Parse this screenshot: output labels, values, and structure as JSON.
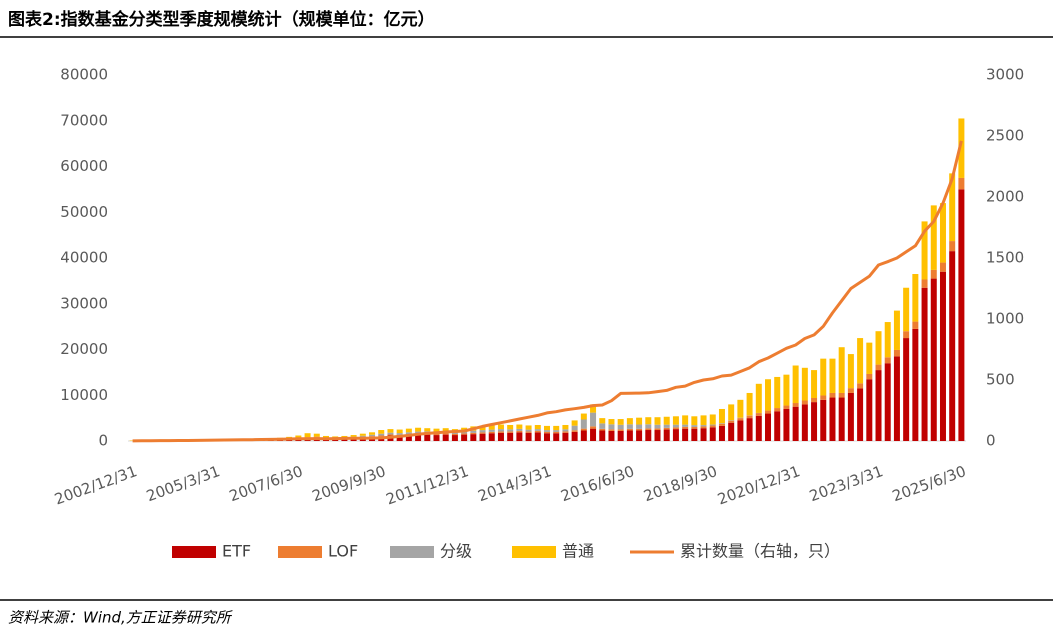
{
  "chart_data": {
    "type": "bar",
    "stacked": true,
    "title": "图表2:指数基金分类型季度规模统计（规模单位：亿元）",
    "source": "资料来源：Wind,方正证券研究所",
    "categories": [
      "2002/12/31",
      null,
      null,
      null,
      null,
      null,
      null,
      null,
      null,
      "2005/3/31",
      null,
      null,
      null,
      null,
      null,
      null,
      null,
      null,
      "2007/6/30",
      null,
      null,
      null,
      null,
      null,
      null,
      null,
      null,
      "2009/9/30",
      null,
      null,
      null,
      null,
      null,
      null,
      null,
      null,
      "2011/12/31",
      null,
      null,
      null,
      null,
      null,
      null,
      null,
      null,
      "2014/3/31",
      null,
      null,
      null,
      null,
      null,
      null,
      null,
      null,
      "2016/6/30",
      null,
      null,
      null,
      null,
      null,
      null,
      null,
      null,
      "2018/9/30",
      null,
      null,
      null,
      null,
      null,
      null,
      null,
      null,
      "2020/12/31",
      null,
      null,
      null,
      null,
      null,
      null,
      null,
      null,
      "2023/3/31",
      null,
      null,
      null,
      null,
      null,
      null,
      null,
      null,
      "2025/6/30"
    ],
    "series": [
      {
        "name": "ETF",
        "color": "#C00000",
        "values": [
          0,
          0,
          0,
          0,
          0,
          0,
          0,
          0,
          50,
          60,
          80,
          100,
          110,
          120,
          150,
          200,
          300,
          400,
          500,
          700,
          800,
          500,
          500,
          600,
          700,
          800,
          900,
          1000,
          1200,
          1100,
          1200,
          1300,
          1400,
          1300,
          1400,
          1300,
          1400,
          1500,
          1600,
          1700,
          1800,
          1800,
          1900,
          1800,
          1900,
          1700,
          1700,
          1800,
          2000,
          2300,
          2700,
          2300,
          2200,
          2200,
          2300,
          2300,
          2400,
          2400,
          2500,
          2600,
          2700,
          2700,
          2800,
          3000,
          3300,
          4000,
          4500,
          5000,
          5500,
          6000,
          6500,
          7000,
          7500,
          8000,
          8500,
          9000,
          9500,
          9500,
          10500,
          11500,
          13500,
          15500,
          17000,
          18500,
          22500,
          24500,
          33500,
          35500,
          37000,
          41500,
          55000
        ]
      },
      {
        "name": "LOF",
        "color": "#ED7D31",
        "values": [
          0,
          0,
          0,
          0,
          0,
          0,
          0,
          0,
          0,
          0,
          0,
          0,
          0,
          20,
          30,
          40,
          50,
          80,
          100,
          150,
          150,
          100,
          100,
          100,
          120,
          150,
          170,
          200,
          220,
          230,
          250,
          260,
          250,
          240,
          250,
          230,
          250,
          270,
          280,
          290,
          300,
          300,
          300,
          290,
          300,
          280,
          280,
          300,
          350,
          400,
          500,
          350,
          350,
          350,
          350,
          350,
          360,
          360,
          370,
          370,
          380,
          370,
          380,
          390,
          420,
          450,
          500,
          550,
          600,
          650,
          700,
          750,
          800,
          850,
          900,
          950,
          1000,
          1000,
          1050,
          1100,
          1150,
          1200,
          1300,
          1400,
          1500,
          1600,
          1800,
          1900,
          2000,
          2200,
          2500
        ]
      },
      {
        "name": "分级",
        "color": "#A5A5A5",
        "values": [
          0,
          0,
          0,
          0,
          0,
          0,
          0,
          0,
          0,
          0,
          0,
          0,
          0,
          0,
          0,
          0,
          0,
          0,
          0,
          0,
          0,
          0,
          0,
          50,
          100,
          200,
          300,
          400,
          400,
          400,
          450,
          500,
          450,
          450,
          450,
          400,
          450,
          500,
          500,
          500,
          500,
          450,
          450,
          400,
          400,
          400,
          400,
          450,
          1000,
          2000,
          3000,
          1200,
          1100,
          1000,
          1000,
          950,
          900,
          800,
          700,
          600,
          500,
          400,
          300,
          200,
          150,
          100,
          80,
          50,
          30,
          0,
          0,
          0,
          0,
          0,
          0,
          0,
          0,
          0,
          0,
          0,
          0,
          0,
          0,
          0,
          0,
          0,
          0,
          0,
          0,
          0,
          0
        ]
      },
      {
        "name": "普通",
        "color": "#FFC000",
        "values": [
          100,
          110,
          120,
          130,
          150,
          160,
          180,
          200,
          200,
          240,
          270,
          300,
          340,
          360,
          370,
          360,
          350,
          420,
          600,
          850,
          650,
          500,
          400,
          350,
          380,
          450,
          530,
          800,
          780,
          770,
          800,
          840,
          700,
          710,
          700,
          670,
          800,
          930,
          920,
          910,
          1000,
          950,
          950,
          910,
          900,
          920,
          920,
          950,
          1150,
          1300,
          1800,
          1150,
          1150,
          1250,
          1350,
          1500,
          1540,
          1640,
          1730,
          1830,
          2020,
          1930,
          2120,
          2210,
          3130,
          3450,
          3920,
          4900,
          6370,
          6850,
          6800,
          6750,
          8200,
          7150,
          6100,
          8050,
          7500,
          10000,
          7450,
          9900,
          6850,
          7300,
          7700,
          8600,
          9500,
          10400,
          12700,
          14100,
          13000,
          14800,
          13000
        ]
      },
      {
        "name": "累计数量（右轴，只）",
        "color": "#ED7D31",
        "type": "line",
        "axis": "y2",
        "values": [
          1,
          2,
          2,
          3,
          3,
          4,
          4,
          5,
          6,
          7,
          8,
          9,
          10,
          11,
          12,
          13,
          14,
          16,
          18,
          19,
          20,
          19,
          20,
          21,
          22,
          23,
          24,
          25,
          30,
          38,
          46,
          55,
          62,
          68,
          74,
          78,
          82,
          100,
          120,
          135,
          150,
          165,
          180,
          195,
          210,
          230,
          240,
          255,
          265,
          275,
          290,
          295,
          330,
          390,
          392,
          393,
          395,
          405,
          415,
          440,
          450,
          480,
          500,
          510,
          533,
          540,
          570,
          600,
          650,
          680,
          720,
          760,
          787,
          840,
          870,
          940,
          1050,
          1150,
          1250,
          1300,
          1350,
          1443,
          1470,
          1500,
          1550,
          1600,
          1720,
          1800,
          1950,
          2150,
          2460
        ]
      }
    ],
    "ylim": [
      0,
      80000
    ],
    "yticks": [
      0,
      10000,
      20000,
      30000,
      40000,
      50000,
      60000,
      70000,
      80000
    ],
    "y2lim": [
      0,
      3000
    ],
    "y2ticks": [
      0,
      500,
      1000,
      1500,
      2000,
      2500,
      3000
    ],
    "legend": "bottom"
  }
}
